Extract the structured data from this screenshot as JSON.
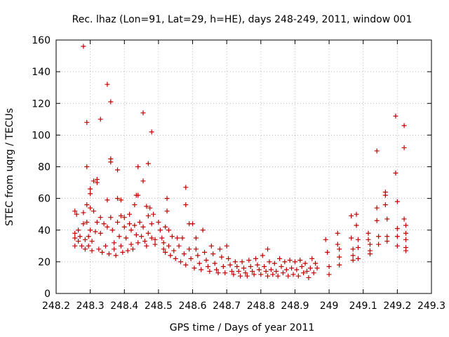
{
  "chart_data": {
    "type": "scatter",
    "title": "Rec. lhaz (Lon=91, Lat=29, h=HE), days 248-249, 2011, window 001",
    "xlabel": "GPS time / Days of year 2011",
    "ylabel": "STEC from uqrg / TECUs",
    "xlim": [
      248.2,
      249.3
    ],
    "ylim": [
      0,
      160
    ],
    "xticks": [
      "248.2",
      "248.3",
      "248.4",
      "248.5",
      "248.6",
      "248.7",
      "248.8",
      "248.9",
      "249",
      "249.1",
      "249.2",
      "249.3"
    ],
    "yticks": [
      "0",
      "20",
      "40",
      "60",
      "80",
      "100",
      "120",
      "140",
      "160"
    ],
    "grid": true,
    "marker": "plus",
    "color": "#c00000",
    "series": [
      {
        "values": [
          [
            248.255,
            52
          ],
          [
            248.255,
            38
          ],
          [
            248.255,
            35
          ],
          [
            248.255,
            30
          ],
          [
            248.26,
            50
          ],
          [
            248.265,
            40
          ],
          [
            248.265,
            33
          ],
          [
            248.27,
            36
          ],
          [
            248.275,
            30
          ],
          [
            248.28,
            156
          ],
          [
            248.28,
            51
          ],
          [
            248.28,
            44
          ],
          [
            248.285,
            34
          ],
          [
            248.285,
            28
          ],
          [
            248.29,
            108
          ],
          [
            248.29,
            80
          ],
          [
            248.29,
            56
          ],
          [
            248.29,
            45
          ],
          [
            248.295,
            36
          ],
          [
            248.295,
            30
          ],
          [
            248.3,
            66
          ],
          [
            248.3,
            63
          ],
          [
            248.3,
            54
          ],
          [
            248.3,
            40
          ],
          [
            248.305,
            33
          ],
          [
            248.305,
            27
          ],
          [
            248.31,
            71
          ],
          [
            248.31,
            52
          ],
          [
            248.315,
            39
          ],
          [
            248.32,
            72
          ],
          [
            248.32,
            70
          ],
          [
            248.32,
            45
          ],
          [
            248.325,
            28
          ],
          [
            248.33,
            110
          ],
          [
            248.33,
            48
          ],
          [
            248.33,
            38
          ],
          [
            248.335,
            26
          ],
          [
            248.34,
            44
          ],
          [
            248.345,
            30
          ],
          [
            248.35,
            132
          ],
          [
            248.35,
            59
          ],
          [
            248.35,
            42
          ],
          [
            248.355,
            25
          ],
          [
            248.36,
            121
          ],
          [
            248.36,
            85
          ],
          [
            248.36,
            83
          ],
          [
            248.36,
            48
          ],
          [
            248.365,
            40
          ],
          [
            248.37,
            32
          ],
          [
            248.37,
            28
          ],
          [
            248.375,
            24
          ],
          [
            248.38,
            78
          ],
          [
            248.38,
            60
          ],
          [
            248.38,
            45
          ],
          [
            248.385,
            36
          ],
          [
            248.39,
            59
          ],
          [
            248.39,
            49
          ],
          [
            248.39,
            30
          ],
          [
            248.395,
            26
          ],
          [
            248.4,
            48
          ],
          [
            248.4,
            42
          ],
          [
            248.405,
            35
          ],
          [
            248.41,
            27
          ],
          [
            248.415,
            50
          ],
          [
            248.415,
            44
          ],
          [
            248.42,
            40
          ],
          [
            248.42,
            31
          ],
          [
            248.425,
            28
          ],
          [
            248.43,
            56
          ],
          [
            248.43,
            43
          ],
          [
            248.435,
            62
          ],
          [
            248.435,
            37
          ],
          [
            248.44,
            62
          ],
          [
            248.44,
            80
          ],
          [
            248.44,
            32
          ],
          [
            248.445,
            45
          ],
          [
            248.45,
            36
          ],
          [
            248.455,
            114
          ],
          [
            248.455,
            71
          ],
          [
            248.455,
            42
          ],
          [
            248.46,
            33
          ],
          [
            248.465,
            55
          ],
          [
            248.465,
            30
          ],
          [
            248.47,
            82
          ],
          [
            248.47,
            49
          ],
          [
            248.47,
            38
          ],
          [
            248.475,
            54
          ],
          [
            248.48,
            102
          ],
          [
            248.48,
            44
          ],
          [
            248.48,
            35
          ],
          [
            248.485,
            50
          ],
          [
            248.49,
            34
          ],
          [
            248.49,
            31
          ],
          [
            248.5,
            45
          ],
          [
            248.505,
            40
          ],
          [
            248.51,
            35
          ],
          [
            248.515,
            32
          ],
          [
            248.515,
            28
          ],
          [
            248.52,
            42
          ],
          [
            248.52,
            26
          ],
          [
            248.525,
            60
          ],
          [
            248.525,
            52
          ],
          [
            248.53,
            40
          ],
          [
            248.53,
            30
          ],
          [
            248.535,
            24
          ],
          [
            248.54,
            36
          ],
          [
            248.545,
            27
          ],
          [
            248.55,
            22
          ],
          [
            248.555,
            35
          ],
          [
            248.56,
            30
          ],
          [
            248.565,
            20
          ],
          [
            248.57,
            35
          ],
          [
            248.575,
            25
          ],
          [
            248.58,
            67
          ],
          [
            248.58,
            56
          ],
          [
            248.58,
            18
          ],
          [
            248.59,
            44
          ],
          [
            248.59,
            28
          ],
          [
            248.595,
            22
          ],
          [
            248.6,
            44
          ],
          [
            248.605,
            16
          ],
          [
            248.61,
            35
          ],
          [
            248.61,
            28
          ],
          [
            248.615,
            24
          ],
          [
            248.62,
            19
          ],
          [
            248.625,
            15
          ],
          [
            248.63,
            40
          ],
          [
            248.635,
            26
          ],
          [
            248.64,
            21
          ],
          [
            248.645,
            17
          ],
          [
            248.65,
            14
          ],
          [
            248.655,
            30
          ],
          [
            248.66,
            25
          ],
          [
            248.665,
            19
          ],
          [
            248.67,
            15
          ],
          [
            248.675,
            13
          ],
          [
            248.68,
            28
          ],
          [
            248.685,
            23
          ],
          [
            248.69,
            17
          ],
          [
            248.695,
            13
          ],
          [
            248.7,
            30
          ],
          [
            248.705,
            22
          ],
          [
            248.71,
            18
          ],
          [
            248.715,
            14
          ],
          [
            248.72,
            12
          ],
          [
            248.725,
            20
          ],
          [
            248.73,
            17
          ],
          [
            248.735,
            14
          ],
          [
            248.74,
            11
          ],
          [
            248.745,
            20
          ],
          [
            248.75,
            16
          ],
          [
            248.755,
            13
          ],
          [
            248.76,
            11
          ],
          [
            248.765,
            21
          ],
          [
            248.77,
            17
          ],
          [
            248.775,
            14
          ],
          [
            248.78,
            12
          ],
          [
            248.785,
            22
          ],
          [
            248.79,
            18
          ],
          [
            248.795,
            15
          ],
          [
            248.8,
            12
          ],
          [
            248.805,
            24
          ],
          [
            248.81,
            17
          ],
          [
            248.815,
            14
          ],
          [
            248.82,
            28
          ],
          [
            248.82,
            11
          ],
          [
            248.825,
            20
          ],
          [
            248.83,
            15
          ],
          [
            248.835,
            12
          ],
          [
            248.84,
            19
          ],
          [
            248.845,
            14
          ],
          [
            248.85,
            11
          ],
          [
            248.855,
            22
          ],
          [
            248.86,
            17
          ],
          [
            248.865,
            13
          ],
          [
            248.87,
            20
          ],
          [
            248.875,
            15
          ],
          [
            248.88,
            11
          ],
          [
            248.885,
            21
          ],
          [
            248.89,
            16
          ],
          [
            248.895,
            12
          ],
          [
            248.9,
            20
          ],
          [
            248.905,
            15
          ],
          [
            248.91,
            11
          ],
          [
            248.915,
            21
          ],
          [
            248.92,
            17
          ],
          [
            248.925,
            13
          ],
          [
            248.93,
            19
          ],
          [
            248.935,
            14
          ],
          [
            248.94,
            10
          ],
          [
            248.945,
            16
          ],
          [
            248.95,
            22
          ],
          [
            248.955,
            13
          ],
          [
            248.96,
            19
          ],
          [
            248.965,
            16
          ],
          [
            248.99,
            34
          ],
          [
            248.995,
            26
          ],
          [
            249.0,
            17
          ],
          [
            249.0,
            12
          ],
          [
            249.025,
            38
          ],
          [
            249.025,
            31
          ],
          [
            249.03,
            28
          ],
          [
            249.03,
            23
          ],
          [
            249.03,
            18
          ],
          [
            249.065,
            49
          ],
          [
            249.065,
            35
          ],
          [
            249.07,
            28
          ],
          [
            249.07,
            24
          ],
          [
            249.07,
            21
          ],
          [
            249.08,
            50
          ],
          [
            249.08,
            43
          ],
          [
            249.085,
            34
          ],
          [
            249.085,
            29
          ],
          [
            249.085,
            22
          ],
          [
            249.115,
            38
          ],
          [
            249.115,
            34
          ],
          [
            249.12,
            31
          ],
          [
            249.12,
            27
          ],
          [
            249.12,
            25
          ],
          [
            249.14,
            90
          ],
          [
            249.14,
            54
          ],
          [
            249.14,
            46
          ],
          [
            249.145,
            36
          ],
          [
            249.145,
            31
          ],
          [
            249.165,
            64
          ],
          [
            249.165,
            62
          ],
          [
            249.165,
            56
          ],
          [
            249.17,
            47
          ],
          [
            249.17,
            36
          ],
          [
            249.17,
            33
          ],
          [
            249.195,
            112
          ],
          [
            249.195,
            76
          ],
          [
            249.2,
            58
          ],
          [
            249.2,
            41
          ],
          [
            249.2,
            36
          ],
          [
            249.2,
            30
          ],
          [
            249.22,
            106
          ],
          [
            249.22,
            92
          ],
          [
            249.22,
            47
          ],
          [
            249.225,
            43
          ],
          [
            249.225,
            38
          ],
          [
            249.225,
            34
          ],
          [
            249.225,
            29
          ],
          [
            249.225,
            27
          ]
        ]
      }
    ]
  }
}
